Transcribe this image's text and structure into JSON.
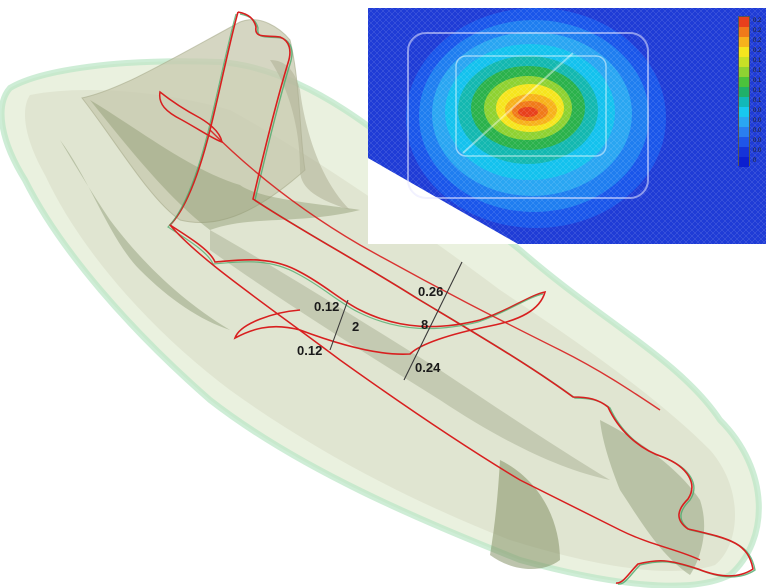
{
  "dimension_labels": {
    "left_top": "0.12",
    "left_mid": "2",
    "left_bottom": "0.12",
    "right_top": "0.26",
    "right_mid": "8",
    "right_bottom": "0.24"
  },
  "colorbar": {
    "ticks": [
      "0.2",
      "0.2",
      "0.2",
      "0.2",
      "0.1",
      "0.1",
      "0.1",
      "0.1",
      "0.1",
      "0.0",
      "0.0",
      "0.0",
      "0.0",
      "0.0",
      "0"
    ],
    "colors": [
      "#e8401c",
      "#f07a1a",
      "#f7b21c",
      "#f6e51e",
      "#c8e026",
      "#8fd232",
      "#4cc23c",
      "#20b06a",
      "#12b8b8",
      "#18c8f0",
      "#2aa6f2",
      "#2a7ef0",
      "#1f55e8",
      "#1533d8",
      "#0c1fd0"
    ]
  }
}
